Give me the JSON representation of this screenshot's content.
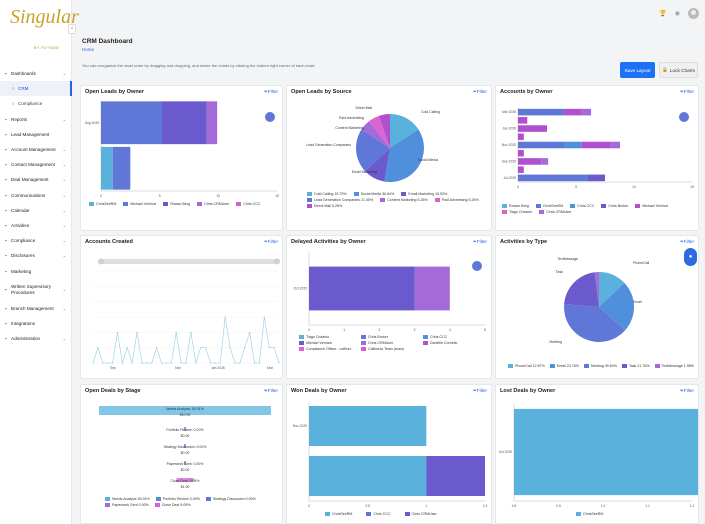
{
  "brand": {
    "name": "Singular",
    "tagline": "BY PUTNAM"
  },
  "header": {
    "title": "CRM Dashboard",
    "breadcrumb": "Home",
    "help": "You can reorganize the chart order by dragging and dropping, and resize the charts by clicking the bottom right corner of each chart."
  },
  "actions": {
    "save": "Save Layout",
    "lock": "Lock Charts"
  },
  "sidebar": {
    "items": [
      {
        "label": "Dashboards",
        "icon": "dashboard-icon",
        "chevron": true
      },
      {
        "label": "CRM",
        "sub": true,
        "active": true
      },
      {
        "label": "Compliance",
        "sub": true
      },
      {
        "label": "Reports",
        "icon": "reports-icon",
        "chevron": true
      },
      {
        "label": "Lead Management",
        "icon": "lead-icon"
      },
      {
        "label": "Account Management",
        "icon": "account-icon",
        "chevron": true
      },
      {
        "label": "Contact Management",
        "icon": "contact-icon",
        "chevron": true
      },
      {
        "label": "Deal Management",
        "icon": "deal-icon",
        "chevron": true
      },
      {
        "label": "Communications",
        "icon": "chat-icon",
        "chevron": true
      },
      {
        "label": "Calendar",
        "icon": "calendar-icon",
        "chevron": true
      },
      {
        "label": "Activities",
        "icon": "activity-icon",
        "chevron": true
      },
      {
        "label": "Compliance",
        "icon": "shield-icon",
        "chevron": true
      },
      {
        "label": "Disclosures",
        "icon": "disclosure-icon",
        "chevron": true
      },
      {
        "label": "Marketing",
        "icon": "marketing-icon"
      },
      {
        "label": "Written Supervisory Procedures",
        "icon": "document-icon",
        "chevron": true
      },
      {
        "label": "Branch Management",
        "icon": "branch-icon",
        "chevron": true
      },
      {
        "label": "Integrations",
        "icon": "integration-icon"
      },
      {
        "label": "Administration",
        "icon": "admin-icon",
        "chevron": true
      }
    ]
  },
  "colors": {
    "c1": "#5f78d8",
    "c2": "#6a5acd",
    "c3": "#a46ad8",
    "c4": "#b050cf",
    "c5": "#d05fd6",
    "sky": "#5ab1db",
    "blue": "#4f8fdc",
    "pink": "#dd63d1"
  },
  "filter_label": "Filter",
  "cards": {
    "open_leads_owner": {
      "title": "Open Leads by Owner"
    },
    "open_leads_source": {
      "title": "Open Leads by Source"
    },
    "accounts_owner": {
      "title": "Accounts by Owner"
    },
    "accounts_created": {
      "title": "Accounts Created"
    },
    "delayed_activities": {
      "title": "Delayed Activities by Owner"
    },
    "activities_type": {
      "title": "Activities by Type"
    },
    "open_deals_stage": {
      "title": "Open Deals by Stage"
    },
    "won_deals": {
      "title": "Won Deals by Owner"
    },
    "lost_deals": {
      "title": "Lost Deals by Owner"
    }
  },
  "chart_data": [
    {
      "id": "open_leads_owner",
      "type": "bar",
      "orientation": "horizontal",
      "stacked": true,
      "categories": [
        "Aug 2025",
        ""
      ],
      "x_ticks": [
        "0",
        "5",
        "10",
        "15"
      ],
      "xlim": [
        0,
        15
      ],
      "series": [
        {
          "name": "ChrisSeeRM",
          "values": [
            0,
            1
          ]
        },
        {
          "name": "Michael Vernizzi",
          "values": [
            5.2,
            1.5
          ]
        },
        {
          "name": "Rowan Berg",
          "values": [
            3.8,
            0
          ]
        },
        {
          "name": "Chris CRMUser",
          "values": [
            0.9,
            0
          ]
        },
        {
          "name": "Chris CCC",
          "values": [
            0,
            0
          ]
        }
      ]
    },
    {
      "id": "open_leads_source",
      "type": "pie",
      "labels": [
        "Cold Calling",
        "Social Media",
        "Email Marketing",
        "Lead Generation Companies",
        "Content Marketing",
        "Paid Advertising",
        "Direct Mail"
      ],
      "display": [
        "Cold Calling 15.79%",
        "Social Media 36.84%",
        "Email Marketing 10.53%",
        "Lead Generation Companies 21.05%",
        "Content Marketing 5.26%",
        "Paid Advertising 5.26%",
        "Direct Mail 5.26%"
      ],
      "values": [
        15.79,
        36.84,
        10.53,
        21.05,
        5.26,
        5.26,
        5.26
      ]
    },
    {
      "id": "accounts_owner",
      "type": "bar",
      "orientation": "horizontal",
      "stacked": true,
      "categories": [
        "Mar 2026",
        "",
        "Jan 2026",
        "",
        "Nov 2025",
        "",
        "Sep 2025",
        "",
        "Jul 2025"
      ],
      "x_ticks": [
        "0",
        "5",
        "10",
        "15"
      ],
      "xlim": [
        0,
        15
      ],
      "series": [
        {
          "name": "Rowan Berg",
          "values": [
            0,
            0,
            0,
            0,
            0,
            0,
            0,
            0,
            0
          ]
        },
        {
          "name": "ChrisSeeRM",
          "values": [
            4,
            0,
            0,
            0,
            4,
            0,
            0,
            0,
            6
          ]
        },
        {
          "name": "Chris CCC",
          "values": [
            0,
            0,
            0,
            0,
            1.5,
            0,
            0,
            0,
            0
          ]
        },
        {
          "name": "Chris Broker",
          "values": [
            0,
            0,
            0,
            0,
            0,
            0,
            0,
            0,
            1.5
          ]
        },
        {
          "name": "Michael Vernizzi",
          "values": [
            1.5,
            0.8,
            2.5,
            0.5,
            2.5,
            0.5,
            2,
            0.5,
            0
          ]
        },
        {
          "name": "Tiago Crizanto",
          "values": [
            0,
            0,
            0,
            0,
            0,
            0,
            0,
            0,
            0
          ]
        },
        {
          "name": "Chris CRMUser",
          "values": [
            0.8,
            0,
            0,
            0,
            0.8,
            0,
            0.6,
            0,
            0
          ]
        }
      ]
    },
    {
      "id": "accounts_created",
      "type": "line",
      "x_ticks": [
        "Sep",
        "Nov",
        "Jan 2026",
        "Mar"
      ],
      "y": [
        0,
        1,
        0,
        0,
        0,
        2,
        0,
        1,
        0,
        2,
        0,
        0,
        0,
        1,
        0,
        0,
        0,
        2,
        0,
        0,
        2,
        0,
        1,
        1,
        0,
        0,
        0,
        3,
        1,
        0,
        0,
        1,
        2,
        0,
        0,
        3,
        1,
        1,
        0
      ],
      "ylim": [
        0,
        6
      ]
    },
    {
      "id": "delayed_activities",
      "type": "bar",
      "orientation": "horizontal",
      "stacked": true,
      "categories": [
        "Oct 2025"
      ],
      "x_ticks": [
        "0",
        "1",
        "2",
        "3",
        "4",
        "5"
      ],
      "xlim": [
        0,
        5
      ],
      "series": [
        {
          "name": "Tiago Crizanto",
          "values": [
            0
          ]
        },
        {
          "name": "Chris Broker",
          "values": [
            0
          ]
        },
        {
          "name": "Chris CCC",
          "values": [
            0
          ]
        },
        {
          "name": "Michael Vernizzi",
          "values": [
            3
          ]
        },
        {
          "name": "Chris CRMUser",
          "values": [
            1
          ]
        },
        {
          "name": "Danielle Cornelio",
          "values": [
            0
          ]
        },
        {
          "name": "Compliance Officer - ccfficer",
          "values": [
            0
          ]
        },
        {
          "name": "California Team (team)",
          "values": [
            0
          ]
        }
      ]
    },
    {
      "id": "activities_type",
      "type": "pie",
      "labels": [
        "PhoneCall",
        "Email",
        "Meeting",
        "Task",
        "TextMessage"
      ],
      "display": [
        "PhoneCall 12.87%",
        "Email 23.76%",
        "Meeting 39.60%",
        "Task 21.78%",
        "TextMessage 1.98%"
      ],
      "values": [
        12.87,
        23.76,
        39.6,
        21.78,
        1.98
      ]
    },
    {
      "id": "open_deals_stage",
      "type": "bar",
      "orientation": "funnel",
      "categories": [
        "Needs Analysis: 90.91%",
        "Portfolio Review: 0.00%",
        "Strategy Discussion: 0.00%",
        "Paperwork Sent: 0.00%",
        "Close Deal: 9.09%"
      ],
      "data_labels": [
        "$10.00",
        "$0.00",
        "$0.00",
        "$0.00",
        "$1.00"
      ],
      "legend": [
        "Needs Analysis 90.91%",
        "Portfolio Review 0.00%",
        "Strategy Discussion 0.00%",
        "Paperwork Sent 0.00%",
        "Close Deal 9.09%"
      ],
      "values": [
        10,
        0,
        0,
        0,
        1
      ]
    },
    {
      "id": "won_deals",
      "type": "bar",
      "orientation": "horizontal",
      "stacked": true,
      "categories": [
        "Nov 2025",
        ""
      ],
      "x_ticks": [
        "0",
        "0.5",
        "1",
        "1.5"
      ],
      "xlim": [
        0,
        1.5
      ],
      "series": [
        {
          "name": "ChrisSeeRM",
          "values": [
            1,
            1
          ]
        },
        {
          "name": "Chris CCC",
          "values": [
            0,
            0
          ]
        },
        {
          "name": "Chris CRMUser",
          "values": [
            0,
            0.5
          ]
        }
      ]
    },
    {
      "id": "lost_deals",
      "type": "bar",
      "orientation": "horizontal",
      "categories": [
        "Oct 2025"
      ],
      "x_ticks": [
        "0.8",
        "0.9",
        "1.0",
        "1.1",
        "1.2"
      ],
      "xlim": [
        0.8,
        1.2
      ],
      "series": [
        {
          "name": "ChrisSeeRM",
          "values": [
            1
          ]
        }
      ]
    }
  ]
}
